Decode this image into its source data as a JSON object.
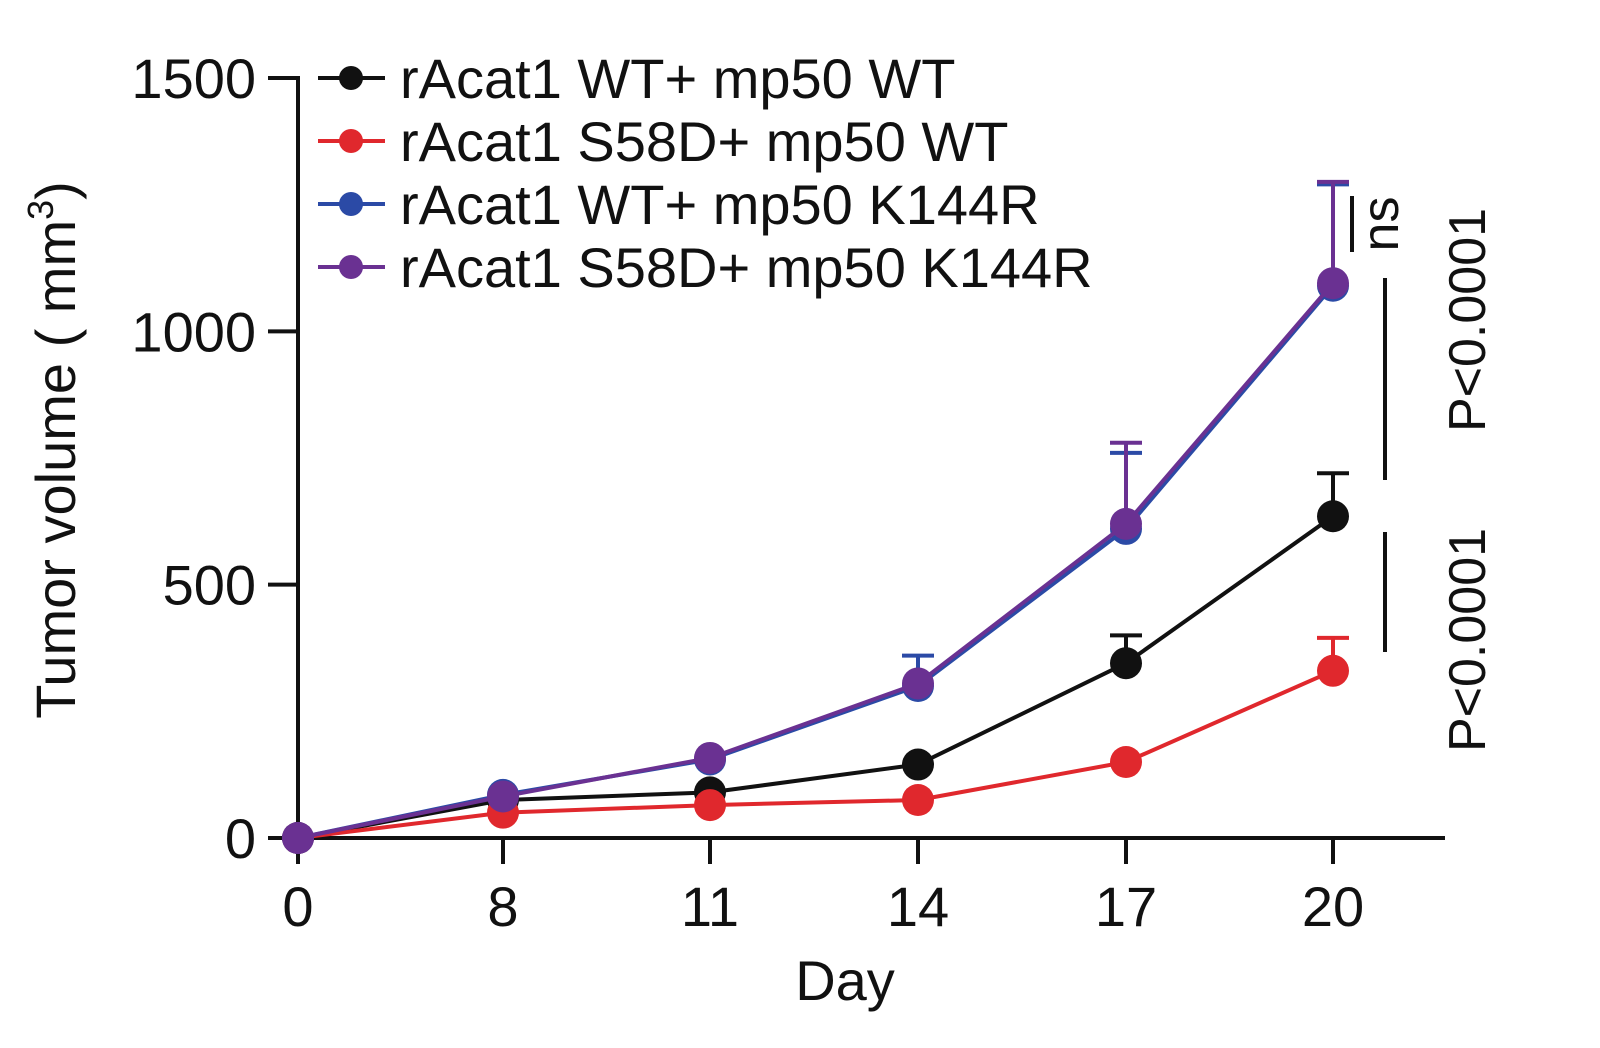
{
  "chart_data": {
    "type": "line",
    "xlabel": "Day",
    "ylabel": "Tumor volume ( mm",
    "ylabel_sup": "3",
    "ylabel_close": ")",
    "x": [
      0,
      8,
      11,
      14,
      17,
      20
    ],
    "x_tick_labels": [
      "0",
      "8",
      "11",
      "14",
      "17",
      "20"
    ],
    "ylim": [
      0,
      1500
    ],
    "y_ticks": [
      0,
      500,
      1000,
      1500
    ],
    "y_tick_labels": [
      "0",
      "500",
      "1000",
      "1500"
    ],
    "legend_position": "top-left",
    "grid": false,
    "series": [
      {
        "name": "rAcat1 WT+ mp50 WT",
        "color": "#111111",
        "values": [
          0,
          75,
          90,
          145,
          345,
          635
        ],
        "error": [
          0,
          0,
          0,
          0,
          55,
          85
        ]
      },
      {
        "name": "rAcat1 S58D+ mp50 WT",
        "color": "#e0282d",
        "values": [
          0,
          50,
          65,
          75,
          150,
          330
        ],
        "error": [
          0,
          0,
          0,
          0,
          0,
          65
        ]
      },
      {
        "name": "rAcat1 WT+ mp50 K144R",
        "color": "#2b4aa6",
        "values": [
          0,
          85,
          155,
          300,
          610,
          1090
        ],
        "error": [
          0,
          0,
          0,
          60,
          150,
          200
        ]
      },
      {
        "name": "rAcat1 S58D+ mp50 K144R",
        "color": "#6a3192",
        "values": [
          0,
          82,
          158,
          305,
          620,
          1095
        ],
        "error": [
          0,
          0,
          0,
          0,
          160,
          200
        ]
      }
    ],
    "annotations": {
      "ns": "ns",
      "p_upper": "P<0.0001",
      "p_lower": "P<0.0001"
    }
  }
}
